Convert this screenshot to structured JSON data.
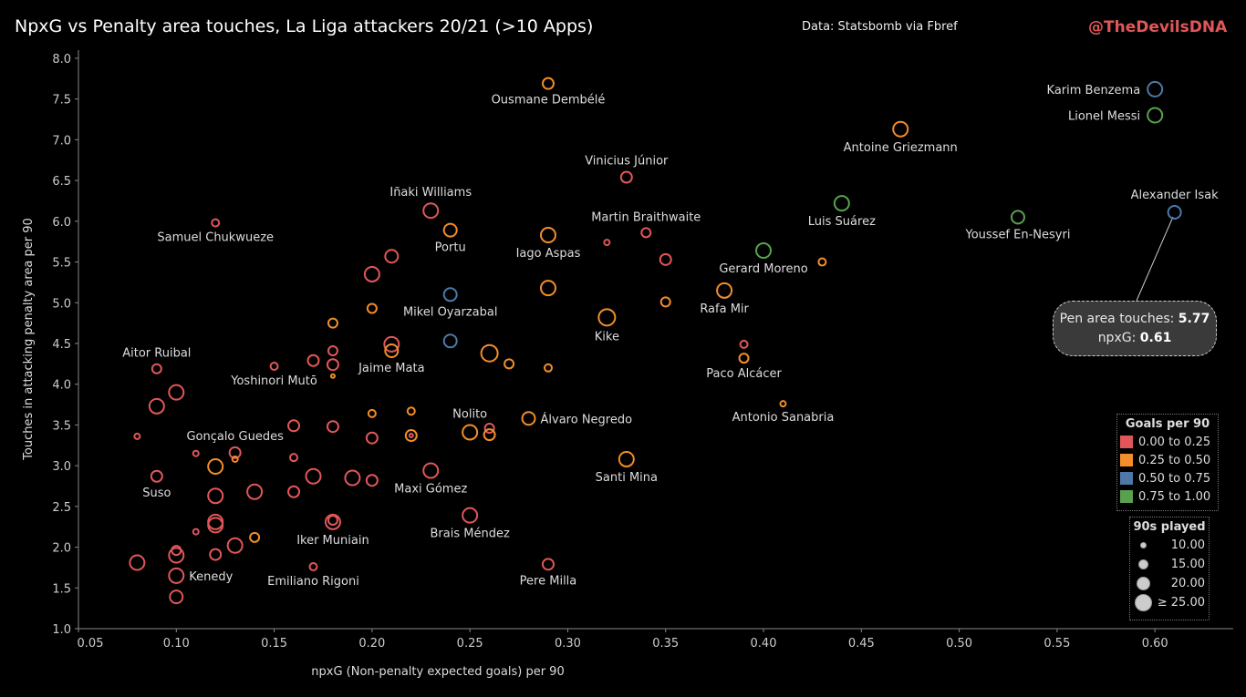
{
  "header": {
    "title": "NpxG vs Penalty area touches, La Liga attackers 20/21 (>10 Apps)",
    "source": "Data: Statsbomb via Fbref",
    "brand": "@TheDevilsDNA"
  },
  "tooltip": {
    "touches_label": "Pen area touches:",
    "touches_value": "5.77",
    "npxg_label": "npxG:",
    "npxg_value": "0.61"
  },
  "legend": {
    "color_title": "Goals per 90",
    "bands": [
      {
        "label": "0.00 to 0.25",
        "color": "#e15759"
      },
      {
        "label": "0.25 to 0.50",
        "color": "#f28e2b"
      },
      {
        "label": "0.50 to 0.75",
        "color": "#4e79a7"
      },
      {
        "label": "0.75 to 1.00",
        "color": "#59a14f"
      }
    ],
    "size_title": "90s played",
    "sizes": [
      {
        "label": "10.00",
        "value": 10
      },
      {
        "label": "15.00",
        "value": 15
      },
      {
        "label": "20.00",
        "value": 20
      },
      {
        "label": "≥ 25.00",
        "value": 25
      }
    ]
  },
  "chart_data": {
    "type": "scatter",
    "title": "NpxG vs Penalty area touches, La Liga attackers 20/21 (>10 Apps)",
    "xlabel": "npxG (Non-penalty expected goals) per 90",
    "ylabel": "Touches in attacking penalty area per 90",
    "xlim": [
      0.05,
      0.64
    ],
    "ylim": [
      1.0,
      8.1
    ],
    "xticks": [
      "0.05",
      "0.10",
      "0.15",
      "0.20",
      "0.25",
      "0.30",
      "0.35",
      "0.40",
      "0.45",
      "0.50",
      "0.55",
      "0.60"
    ],
    "yticks": [
      "1.0",
      "1.5",
      "2.0",
      "2.5",
      "3.0",
      "3.5",
      "4.0",
      "4.5",
      "5.0",
      "5.5",
      "6.0",
      "6.5",
      "7.0",
      "7.5",
      "8.0"
    ],
    "grid": false,
    "color_by": "Goals per 90 band",
    "size_by": "90s played",
    "marker": "hollow circle",
    "points": [
      {
        "name": "Ousmane Dembélé",
        "x": 0.29,
        "y": 7.69,
        "band": 1,
        "n90": 20
      },
      {
        "name": "Karim Benzema",
        "x": 0.6,
        "y": 7.62,
        "band": 2,
        "n90": 25
      },
      {
        "name": "Lionel Messi",
        "x": 0.6,
        "y": 7.3,
        "band": 3,
        "n90": 25
      },
      {
        "name": "Antoine Griezmann",
        "x": 0.47,
        "y": 7.13,
        "band": 1,
        "n90": 25
      },
      {
        "name": "Vinicius Júnior",
        "x": 0.33,
        "y": 6.54,
        "band": 0,
        "n90": 20
      },
      {
        "name": "Iñaki Williams",
        "x": 0.23,
        "y": 6.13,
        "band": 0,
        "n90": 25
      },
      {
        "name": "Samuel Chukwueze",
        "x": 0.12,
        "y": 5.98,
        "band": 0,
        "n90": 15
      },
      {
        "name": "Portu",
        "x": 0.24,
        "y": 5.89,
        "band": 1,
        "n90": 22.5
      },
      {
        "name": "Iago Aspas",
        "x": 0.29,
        "y": 5.83,
        "band": 1,
        "n90": 25
      },
      {
        "name": "Martin Braithwaite",
        "x": 0.34,
        "y": 5.86,
        "band": 0,
        "n90": 17.5
      },
      {
        "name": "",
        "x": 0.32,
        "y": 5.74,
        "band": 0,
        "n90": 12.5
      },
      {
        "name": "Luis Suárez",
        "x": 0.44,
        "y": 6.22,
        "band": 3,
        "n90": 25
      },
      {
        "name": "Youssef En-Nesyri",
        "x": 0.53,
        "y": 6.05,
        "band": 3,
        "n90": 22.5
      },
      {
        "name": "Alexander Isak",
        "x": 0.61,
        "y": 6.11,
        "band": 2,
        "n90": 22.5
      },
      {
        "name": "Gerard Moreno",
        "x": 0.4,
        "y": 5.64,
        "band": 3,
        "n90": 25
      },
      {
        "name": "",
        "x": 0.43,
        "y": 5.5,
        "band": 1,
        "n90": 15
      },
      {
        "name": "",
        "x": 0.21,
        "y": 5.57,
        "band": 0,
        "n90": 22.5
      },
      {
        "name": "",
        "x": 0.35,
        "y": 5.53,
        "band": 0,
        "n90": 20
      },
      {
        "name": "",
        "x": 0.2,
        "y": 5.35,
        "band": 0,
        "n90": 25
      },
      {
        "name": "Mikel Oyarzabal",
        "x": 0.24,
        "y": 5.1,
        "band": 2,
        "n90": 22.5
      },
      {
        "name": "",
        "x": 0.29,
        "y": 5.18,
        "band": 1,
        "n90": 25
      },
      {
        "name": "Rafa Mir",
        "x": 0.38,
        "y": 5.15,
        "band": 1,
        "n90": 25
      },
      {
        "name": "",
        "x": 0.35,
        "y": 5.01,
        "band": 1,
        "n90": 17.5
      },
      {
        "name": "",
        "x": 0.2,
        "y": 4.93,
        "band": 1,
        "n90": 17.5
      },
      {
        "name": "",
        "x": 0.18,
        "y": 4.75,
        "band": 1,
        "n90": 17.5
      },
      {
        "name": "Kike",
        "x": 0.32,
        "y": 4.82,
        "band": 1,
        "n90": 27.5
      },
      {
        "name": "",
        "x": 0.24,
        "y": 4.53,
        "band": 2,
        "n90": 22.5
      },
      {
        "name": "",
        "x": 0.21,
        "y": 4.49,
        "band": 0,
        "n90": 25
      },
      {
        "name": "Jaime Mata",
        "x": 0.21,
        "y": 4.41,
        "band": 1,
        "n90": 22.5
      },
      {
        "name": "",
        "x": 0.18,
        "y": 4.41,
        "band": 0,
        "n90": 17.5
      },
      {
        "name": "",
        "x": 0.26,
        "y": 4.38,
        "band": 1,
        "n90": 27.5
      },
      {
        "name": "",
        "x": 0.17,
        "y": 4.29,
        "band": 0,
        "n90": 20
      },
      {
        "name": "",
        "x": 0.18,
        "y": 4.24,
        "band": 0,
        "n90": 20
      },
      {
        "name": "",
        "x": 0.27,
        "y": 4.25,
        "band": 1,
        "n90": 17.5
      },
      {
        "name": "",
        "x": 0.29,
        "y": 4.2,
        "band": 1,
        "n90": 15
      },
      {
        "name": "Yoshinori Mutō",
        "x": 0.15,
        "y": 4.22,
        "band": 0,
        "n90": 15
      },
      {
        "name": "",
        "x": 0.18,
        "y": 4.1,
        "band": 1,
        "n90": 10
      },
      {
        "name": "Aitor Ruibal",
        "x": 0.09,
        "y": 4.19,
        "band": 0,
        "n90": 17.5
      },
      {
        "name": "",
        "x": 0.1,
        "y": 3.9,
        "band": 0,
        "n90": 25
      },
      {
        "name": "",
        "x": 0.09,
        "y": 3.73,
        "band": 0,
        "n90": 25
      },
      {
        "name": "",
        "x": 0.39,
        "y": 4.49,
        "band": 0,
        "n90": 15
      },
      {
        "name": "Paco Alcácer",
        "x": 0.39,
        "y": 4.32,
        "band": 1,
        "n90": 17.5
      },
      {
        "name": "Antonio Sanabria",
        "x": 0.41,
        "y": 3.76,
        "band": 1,
        "n90": 12.5
      },
      {
        "name": "",
        "x": 0.2,
        "y": 3.64,
        "band": 1,
        "n90": 15
      },
      {
        "name": "",
        "x": 0.22,
        "y": 3.67,
        "band": 1,
        "n90": 15
      },
      {
        "name": "Álvaro Negredo",
        "x": 0.28,
        "y": 3.58,
        "band": 1,
        "n90": 22.5
      },
      {
        "name": "",
        "x": 0.16,
        "y": 3.49,
        "band": 0,
        "n90": 20
      },
      {
        "name": "",
        "x": 0.18,
        "y": 3.48,
        "band": 0,
        "n90": 20
      },
      {
        "name": "",
        "x": 0.08,
        "y": 3.36,
        "band": 0,
        "n90": 12.5
      },
      {
        "name": "Nolito",
        "x": 0.25,
        "y": 3.41,
        "band": 1,
        "n90": 25
      },
      {
        "name": "",
        "x": 0.26,
        "y": 3.46,
        "band": 0,
        "n90": 17.5
      },
      {
        "name": "",
        "x": 0.26,
        "y": 3.38,
        "band": 1,
        "n90": 20
      },
      {
        "name": "",
        "x": 0.22,
        "y": 3.37,
        "band": 1,
        "n90": 20
      },
      {
        "name": "",
        "x": 0.22,
        "y": 3.37,
        "band": 0,
        "n90": 10
      },
      {
        "name": "",
        "x": 0.2,
        "y": 3.34,
        "band": 0,
        "n90": 20
      },
      {
        "name": "Gonçalo Guedes",
        "x": 0.13,
        "y": 3.16,
        "band": 0,
        "n90": 20
      },
      {
        "name": "",
        "x": 0.13,
        "y": 3.08,
        "band": 1,
        "n90": 12.5
      },
      {
        "name": "",
        "x": 0.11,
        "y": 3.15,
        "band": 0,
        "n90": 12.5
      },
      {
        "name": "",
        "x": 0.16,
        "y": 3.1,
        "band": 0,
        "n90": 15
      },
      {
        "name": "Santi Mina",
        "x": 0.33,
        "y": 3.08,
        "band": 1,
        "n90": 25
      },
      {
        "name": "",
        "x": 0.12,
        "y": 2.99,
        "band": 1,
        "n90": 25
      },
      {
        "name": "Maxi Gómez",
        "x": 0.23,
        "y": 2.94,
        "band": 0,
        "n90": 25
      },
      {
        "name": "Suso",
        "x": 0.09,
        "y": 2.87,
        "band": 0,
        "n90": 20
      },
      {
        "name": "",
        "x": 0.17,
        "y": 2.87,
        "band": 0,
        "n90": 25
      },
      {
        "name": "",
        "x": 0.19,
        "y": 2.85,
        "band": 0,
        "n90": 25
      },
      {
        "name": "",
        "x": 0.2,
        "y": 2.82,
        "band": 0,
        "n90": 20
      },
      {
        "name": "",
        "x": 0.12,
        "y": 2.63,
        "band": 0,
        "n90": 25
      },
      {
        "name": "",
        "x": 0.14,
        "y": 2.68,
        "band": 0,
        "n90": 25
      },
      {
        "name": "",
        "x": 0.16,
        "y": 2.68,
        "band": 0,
        "n90": 20
      },
      {
        "name": "Brais Méndez",
        "x": 0.25,
        "y": 2.39,
        "band": 0,
        "n90": 25
      },
      {
        "name": "",
        "x": 0.12,
        "y": 2.31,
        "band": 0,
        "n90": 25
      },
      {
        "name": "",
        "x": 0.12,
        "y": 2.27,
        "band": 0,
        "n90": 25
      },
      {
        "name": "Iker Muniain",
        "x": 0.18,
        "y": 2.31,
        "band": 0,
        "n90": 25
      },
      {
        "name": "",
        "x": 0.18,
        "y": 2.33,
        "band": 0,
        "n90": 17.5
      },
      {
        "name": "",
        "x": 0.11,
        "y": 2.19,
        "band": 0,
        "n90": 12.5
      },
      {
        "name": "",
        "x": 0.14,
        "y": 2.12,
        "band": 1,
        "n90": 17.5
      },
      {
        "name": "",
        "x": 0.13,
        "y": 2.02,
        "band": 0,
        "n90": 25
      },
      {
        "name": "",
        "x": 0.1,
        "y": 1.96,
        "band": 0,
        "n90": 17.5
      },
      {
        "name": "",
        "x": 0.1,
        "y": 1.9,
        "band": 0,
        "n90": 25
      },
      {
        "name": "",
        "x": 0.12,
        "y": 1.91,
        "band": 0,
        "n90": 20
      },
      {
        "name": "",
        "x": 0.08,
        "y": 1.81,
        "band": 0,
        "n90": 25
      },
      {
        "name": "Kenedy",
        "x": 0.1,
        "y": 1.65,
        "band": 0,
        "n90": 25
      },
      {
        "name": "Emiliano Rigoni",
        "x": 0.17,
        "y": 1.76,
        "band": 0,
        "n90": 15
      },
      {
        "name": "Pere Milla",
        "x": 0.29,
        "y": 1.79,
        "band": 0,
        "n90": 20
      },
      {
        "name": "",
        "x": 0.1,
        "y": 1.39,
        "band": 0,
        "n90": 22.5
      }
    ]
  }
}
